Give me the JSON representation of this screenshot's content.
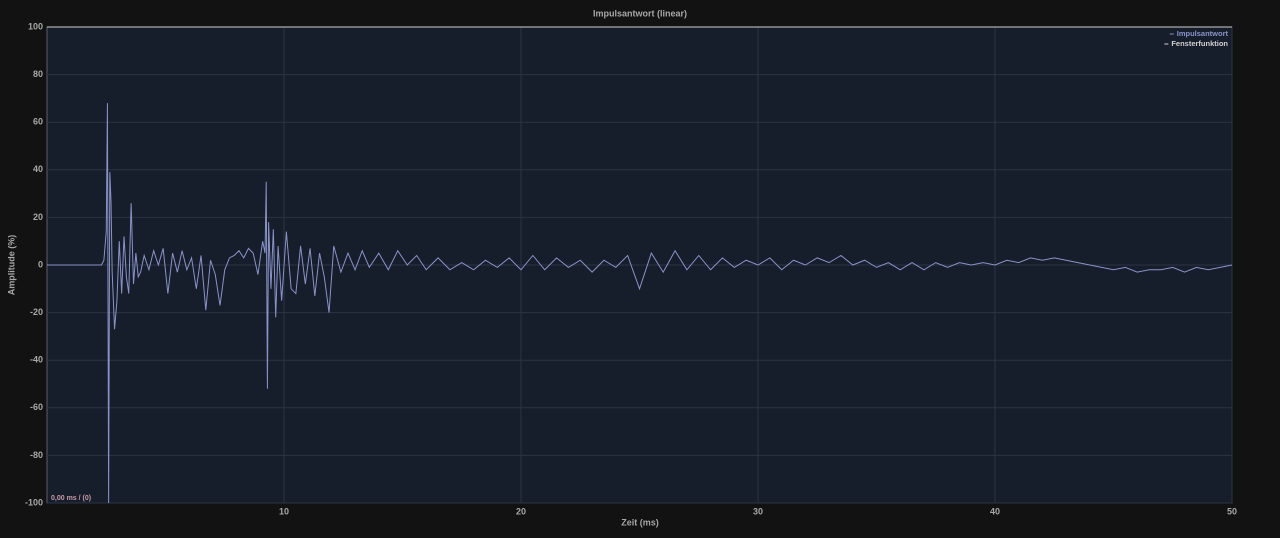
{
  "chart_data": {
    "type": "line",
    "title": "Impulsantwort (linear)",
    "x_label": "Zeit (ms)",
    "y_label": "Amplitude (%)",
    "annotation": "0,00 ms / (0)",
    "xlim": [
      0,
      50
    ],
    "xticks": [
      10,
      20,
      30,
      40,
      50
    ],
    "ylim": [
      -100,
      100
    ],
    "yticks": [
      -100,
      -80,
      -60,
      -40,
      -20,
      0,
      20,
      40,
      60,
      80,
      100
    ],
    "grid": true,
    "legend": "top-right",
    "series": [
      {
        "name": "Impulsantwort",
        "color": "#8a93c8",
        "x": [
          0,
          1,
          2,
          2.3,
          2.4,
          2.5,
          2.55,
          2.6,
          2.65,
          2.7,
          2.75,
          2.85,
          2.95,
          3.05,
          3.15,
          3.25,
          3.35,
          3.45,
          3.55,
          3.65,
          3.75,
          3.85,
          3.95,
          4.1,
          4.3,
          4.5,
          4.7,
          4.9,
          5.1,
          5.3,
          5.5,
          5.7,
          5.9,
          6.1,
          6.3,
          6.5,
          6.7,
          6.9,
          7.1,
          7.3,
          7.5,
          7.7,
          7.9,
          8.1,
          8.3,
          8.5,
          8.7,
          8.9,
          9.1,
          9.2,
          9.25,
          9.3,
          9.35,
          9.45,
          9.55,
          9.65,
          9.75,
          9.9,
          10.1,
          10.3,
          10.5,
          10.7,
          10.9,
          11.1,
          11.3,
          11.5,
          11.7,
          11.9,
          12.1,
          12.4,
          12.7,
          13,
          13.3,
          13.6,
          14,
          14.4,
          14.8,
          15.2,
          15.6,
          16,
          16.5,
          17,
          17.5,
          18,
          18.5,
          19,
          19.5,
          20,
          20.5,
          21,
          21.5,
          22,
          22.5,
          23,
          23.5,
          24,
          24.5,
          25,
          25.5,
          26,
          26.5,
          27,
          27.5,
          28,
          28.5,
          29,
          29.5,
          30,
          30.5,
          31,
          31.5,
          32,
          32.5,
          33,
          33.5,
          34,
          34.5,
          35,
          35.5,
          36,
          36.5,
          37,
          37.5,
          38,
          38.5,
          39,
          39.5,
          40,
          40.5,
          41,
          41.5,
          42,
          42.5,
          43,
          43.5,
          44,
          44.5,
          45,
          45.5,
          46,
          46.5,
          47,
          47.5,
          48,
          48.5,
          49,
          49.5,
          50
        ],
        "values": [
          0,
          0,
          0,
          0,
          2,
          14,
          68,
          -100,
          39,
          27,
          -3,
          -27,
          -15,
          10,
          -12,
          12,
          -5,
          -12,
          26,
          -8,
          5,
          -5,
          -3,
          4,
          -2,
          6,
          0,
          7,
          -12,
          5,
          -3,
          6,
          -2,
          3,
          -10,
          4,
          -19,
          2,
          -4,
          -17,
          -2,
          3,
          4,
          6,
          3,
          7,
          5,
          -4,
          10,
          5,
          35,
          -52,
          18,
          -10,
          15,
          -22,
          8,
          -15,
          14,
          -10,
          -12,
          8,
          -8,
          7,
          -13,
          5,
          -5,
          -20,
          8,
          -3,
          5,
          -2,
          6,
          -1,
          5,
          -2,
          6,
          0,
          4,
          -2,
          3,
          -2,
          1,
          -2,
          2,
          -1,
          3,
          -2,
          4,
          -2,
          3,
          -1,
          2,
          -3,
          2,
          -1,
          4,
          -10,
          5,
          -3,
          6,
          -2,
          4,
          -2,
          3,
          -1,
          2,
          0,
          3,
          -2,
          2,
          0,
          3,
          1,
          4,
          0,
          2,
          -1,
          1,
          -2,
          1,
          -2,
          1,
          -1,
          1,
          0,
          1,
          0,
          2,
          1,
          3,
          2,
          3,
          2,
          1,
          0,
          -1,
          -2,
          -1,
          -3,
          -2,
          -2,
          -1,
          -3,
          -1,
          -2,
          -1,
          0
        ]
      },
      {
        "name": "Fensterfunktion",
        "color": "#d0d0d0",
        "x": [
          0,
          50
        ],
        "values": [
          100,
          100
        ]
      }
    ]
  }
}
